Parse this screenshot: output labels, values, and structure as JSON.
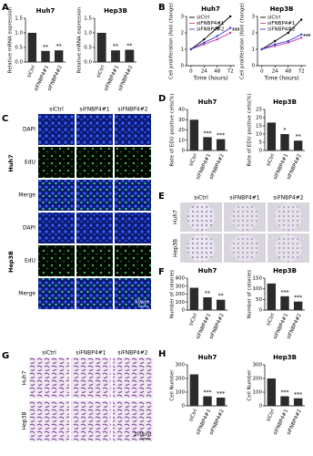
{
  "panel_labels": [
    "A",
    "B",
    "C",
    "D",
    "E",
    "F",
    "G",
    "H"
  ],
  "chart_data": [
    {
      "type": "bar",
      "title": "Huh7",
      "y_label": "Relative mRNA expression",
      "categories": [
        "siCtrl",
        "siFNBP4#1",
        "siFNBP4#2"
      ],
      "values": [
        1.0,
        0.38,
        0.4
      ],
      "annotations": [
        null,
        "**",
        "**"
      ],
      "color": "#2b2b2b",
      "ylim": [
        0,
        1.5
      ],
      "yticks": [
        {
          "value": 0,
          "label": "0.0"
        },
        0.5,
        {
          "value": 1,
          "label": "1.0"
        },
        1.5
      ]
    },
    {
      "type": "bar",
      "title": "Hep3B",
      "y_label": "Relative mRNA expression",
      "categories": [
        "siCtrl",
        "siFNBP4#1",
        "siFNBP4#2"
      ],
      "values": [
        1.0,
        0.4,
        0.42
      ],
      "annotations": [
        null,
        "**",
        "**"
      ],
      "color": "#2b2b2b",
      "ylim": [
        0,
        1.5
      ],
      "yticks": [
        {
          "value": 0,
          "label": "0.0"
        },
        0.5,
        {
          "value": 1,
          "label": "1.0"
        },
        1.5
      ]
    },
    {
      "type": "line",
      "title": "Huh7",
      "y_label": "Cell proliferation (fold change)",
      "x_label": "Time (hours)",
      "x": [
        0,
        24,
        48,
        72
      ],
      "xlim": [
        -8,
        80
      ],
      "xticks": [
        0,
        24,
        48,
        72
      ],
      "ylim": [
        0,
        3
      ],
      "yticks": [
        0,
        1,
        2,
        3
      ],
      "annotation": "***",
      "series": [
        {
          "name": "siCtrl",
          "color": "#000000",
          "values": [
            1,
            1.6,
            2.3,
            3.0
          ]
        },
        {
          "name": "siFNBP4#1",
          "color": "#c0399f",
          "values": [
            1,
            1.3,
            1.6,
            2.0
          ]
        },
        {
          "name": "siFNBP4#2",
          "color": "#3b3bd6",
          "values": [
            1,
            1.4,
            1.8,
            2.3
          ]
        }
      ]
    },
    {
      "type": "line",
      "title": "Hep3B",
      "y_label": "Cell proliferation (fold change)",
      "x_label": "Time (hours)",
      "x": [
        0,
        24,
        48,
        72
      ],
      "xlim": [
        -8,
        80
      ],
      "xticks": [
        0,
        24,
        48,
        72
      ],
      "ylim": [
        0,
        3
      ],
      "yticks": [
        0,
        1,
        2,
        3
      ],
      "annotation": "***",
      "series": [
        {
          "name": "siCtrl",
          "color": "#000000",
          "values": [
            1,
            1.5,
            2.0,
            2.8
          ]
        },
        {
          "name": "siFNBP4#1",
          "color": "#c0399f",
          "values": [
            1,
            1.2,
            1.4,
            1.7
          ]
        },
        {
          "name": "siFNBP4#2",
          "color": "#3b3bd6",
          "values": [
            1,
            1.3,
            1.5,
            1.9
          ]
        }
      ]
    },
    {
      "type": "bar",
      "title": "Huh7",
      "y_label": "Rate of EDU positive cells(%)",
      "categories": [
        "siCtrl",
        "siFNBP4#1",
        "siFNBP4#2"
      ],
      "values": [
        30,
        13,
        11
      ],
      "annotations": [
        null,
        "***",
        "***"
      ],
      "color": "#2b2b2b",
      "ylim": [
        0,
        40
      ],
      "yticks": [
        0,
        10,
        20,
        30,
        40
      ]
    },
    {
      "type": "bar",
      "title": "Hep3B",
      "y_label": "Rate of EDU positive cells(%)",
      "categories": [
        "siCtrl",
        "siFNBP4#1",
        "siFNBP4#2"
      ],
      "values": [
        17,
        10,
        6
      ],
      "annotations": [
        null,
        "*",
        "**"
      ],
      "color": "#2b2b2b",
      "ylim": [
        0,
        25
      ],
      "yticks": [
        0,
        5,
        10,
        15,
        20,
        25
      ]
    },
    {
      "type": "bar",
      "title": "Huh7",
      "y_label": "Number of colonies",
      "categories": [
        "siCtrl",
        "siFNBP4#1",
        "siFNBP4#2"
      ],
      "values": [
        280,
        160,
        130
      ],
      "annotations": [
        null,
        "**",
        "**"
      ],
      "color": "#2b2b2b",
      "ylim": [
        0,
        400
      ],
      "yticks": [
        0,
        100,
        200,
        300,
        400
      ]
    },
    {
      "type": "bar",
      "title": "Hep3B",
      "y_label": "Number of colonies",
      "categories": [
        "siCtrl",
        "siFNBP4#1",
        "siFNBP4#2"
      ],
      "values": [
        125,
        65,
        40
      ],
      "annotations": [
        null,
        "***",
        "***"
      ],
      "color": "#2b2b2b",
      "ylim": [
        0,
        150
      ],
      "yticks": [
        0,
        50,
        100,
        150
      ]
    },
    {
      "type": "bar",
      "title": "Huh7",
      "y_label": "Cell Number",
      "categories": [
        "siCtrl",
        "siFNBP4#1",
        "siFNBP4#2"
      ],
      "values": [
        230,
        70,
        60
      ],
      "annotations": [
        null,
        "***",
        "***"
      ],
      "color": "#2b2b2b",
      "ylim": [
        0,
        300
      ],
      "yticks": [
        0,
        100,
        200,
        300
      ]
    },
    {
      "type": "bar",
      "title": "Hep3B",
      "y_label": "Cell Number",
      "categories": [
        "siCtrl",
        "siFNBP4#1",
        "siFNBP4#2"
      ],
      "values": [
        200,
        70,
        55
      ],
      "annotations": [
        null,
        "***",
        "***"
      ],
      "color": "#2b2b2b",
      "ylim": [
        0,
        300
      ],
      "yticks": [
        0,
        100,
        200,
        300
      ]
    }
  ],
  "image_panels": [
    {
      "columns": [
        "siCtrl",
        "siFNBP4#1",
        "siFNBP4#2"
      ],
      "groups": [
        "Huh7",
        "Hep3B"
      ],
      "rows": [
        "DAPI",
        "EdU",
        "Merge",
        "DAPI",
        "EdU",
        "Merge"
      ],
      "scale_bar": "50μm"
    },
    {
      "columns": [
        "siCtrl",
        "siFNBP4#1",
        "siFNBP4#2"
      ],
      "rows": [
        "Huh7",
        "Hep3B"
      ]
    },
    {
      "columns": [
        "siCtrl",
        "siFNBP4#1",
        "siFNBP4#2"
      ],
      "rows": [
        "Huh7",
        "Hep3B"
      ],
      "scale_bar": "100μm"
    }
  ]
}
